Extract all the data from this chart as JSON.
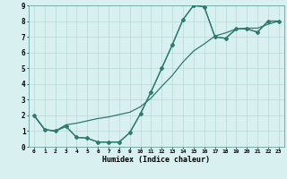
{
  "xlabel": "Humidex (Indice chaleur)",
  "bg_color": "#d8f0f0",
  "line_color": "#2d7a6e",
  "grid_color": "#b8d8d4",
  "xlim": [
    -0.5,
    23.5
  ],
  "ylim": [
    0,
    9
  ],
  "xticks": [
    0,
    1,
    2,
    3,
    4,
    5,
    6,
    7,
    8,
    9,
    10,
    11,
    12,
    13,
    14,
    15,
    16,
    17,
    18,
    19,
    20,
    21,
    22,
    23
  ],
  "yticks": [
    0,
    1,
    2,
    3,
    4,
    5,
    6,
    7,
    8,
    9
  ],
  "line1_x": [
    0,
    1,
    2,
    3,
    4,
    5,
    6,
    7,
    8,
    9,
    10,
    11,
    12,
    13,
    14,
    15,
    16,
    17,
    18,
    19,
    20,
    21,
    22,
    23
  ],
  "line1_y": [
    2.0,
    1.1,
    1.0,
    1.3,
    0.6,
    0.55,
    0.3,
    0.3,
    0.3,
    0.9,
    2.1,
    3.5,
    5.0,
    6.5,
    8.1,
    9.0,
    8.9,
    7.0,
    6.9,
    7.5,
    7.5,
    7.3,
    8.0,
    8.0
  ],
  "line2_x": [
    0,
    1,
    2,
    3,
    4,
    5,
    6,
    7,
    8,
    9,
    10,
    11,
    12,
    13,
    14,
    15,
    16,
    17,
    18,
    19,
    20,
    21,
    22,
    23
  ],
  "line2_y": [
    2.0,
    1.1,
    1.0,
    1.4,
    1.5,
    1.65,
    1.8,
    1.9,
    2.05,
    2.2,
    2.55,
    3.1,
    3.85,
    4.55,
    5.4,
    6.1,
    6.55,
    7.05,
    7.25,
    7.5,
    7.55,
    7.55,
    7.8,
    8.0
  ],
  "line3_x": [
    0,
    1,
    2,
    3,
    4,
    5,
    6,
    7,
    8,
    9,
    10,
    11,
    12,
    13,
    14,
    15,
    16,
    17,
    18,
    19,
    20,
    21,
    22,
    23
  ],
  "line3_y": [
    2.0,
    1.1,
    1.0,
    1.3,
    0.6,
    0.55,
    0.3,
    0.3,
    0.3,
    0.9,
    2.1,
    3.5,
    5.0,
    6.5,
    8.1,
    9.0,
    8.9,
    7.0,
    6.9,
    7.5,
    7.5,
    7.3,
    8.0,
    8.0
  ]
}
